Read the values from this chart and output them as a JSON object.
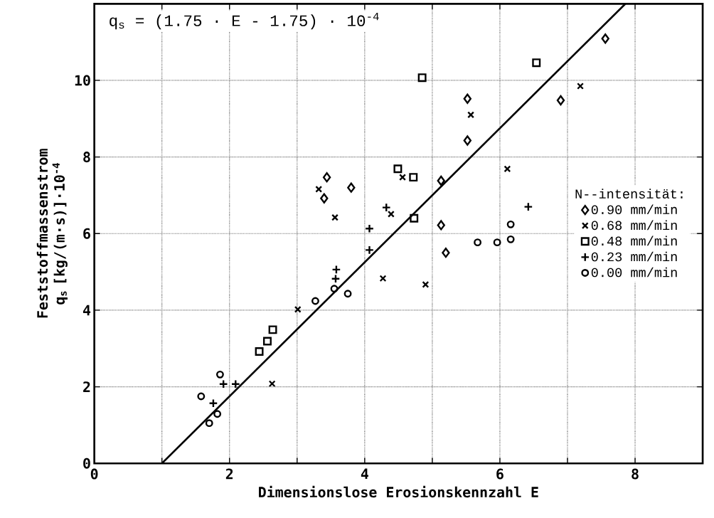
{
  "chart_data": {
    "type": "scatter",
    "xlabel": "Dimensionslose Erosionskennzahl E",
    "ylabel": "Feststoffmassenstrom q$_{s}$ [kg/(m·s)]·10$^{-4}$",
    "legend_title": "N--intensität:",
    "annotations": [
      "q$_{s}$ = (1.75 · E - 1.75) · 10$^{-4}$"
    ],
    "xlim": [
      0,
      9
    ],
    "ylim": [
      0,
      12
    ],
    "xticks": [
      0,
      {
        "value": 1,
        "label": null
      },
      2,
      {
        "value": 3,
        "label": null
      },
      4,
      {
        "value": 5,
        "label": null
      },
      6,
      {
        "value": 7,
        "label": null
      },
      8
    ],
    "yticks": [
      0,
      2,
      4,
      6,
      8,
      10
    ],
    "grid": true,
    "legend": "right",
    "series": [
      {
        "name": "0.90 mm/min",
        "color": "#000000",
        "marker": "diamond",
        "x": [
          3.44,
          3.4,
          3.8,
          7.56,
          5.52,
          5.52,
          6.9,
          5.13,
          5.13,
          5.2
        ],
        "values": [
          7.47,
          6.92,
          7.2,
          11.09,
          9.52,
          8.43,
          9.48,
          7.38,
          6.22,
          5.5
        ]
      },
      {
        "name": "0.68 mm/min",
        "color": "#000000",
        "marker": "x",
        "x": [
          3.32,
          3.56,
          5.57,
          7.19,
          6.11,
          4.56,
          4.39,
          4.9,
          3.01,
          2.63,
          4.27
        ],
        "values": [
          7.16,
          6.42,
          9.1,
          9.85,
          7.69,
          7.47,
          6.51,
          4.67,
          4.02,
          2.08,
          4.83
        ]
      },
      {
        "name": "0.48 mm/min",
        "color": "#000000",
        "marker": "square",
        "x": [
          4.85,
          6.54,
          4.49,
          4.72,
          4.73,
          2.44,
          2.56,
          2.64
        ],
        "values": [
          10.07,
          10.46,
          7.69,
          7.47,
          6.4,
          2.92,
          3.19,
          3.49
        ]
      },
      {
        "name": "0.23 mm/min",
        "color": "#000000",
        "marker": "cross",
        "x": [
          1.76,
          1.91,
          2.09,
          3.58,
          3.57,
          4.07,
          4.07,
          4.32,
          6.42
        ],
        "values": [
          1.57,
          2.07,
          2.07,
          5.06,
          4.82,
          5.57,
          6.13,
          6.68,
          6.7
        ]
      },
      {
        "name": "0.00 mm/min",
        "color": "#000000",
        "marker": "circle",
        "x": [
          1.58,
          1.7,
          1.82,
          1.86,
          3.27,
          3.55,
          3.75,
          5.67,
          5.96,
          6.16,
          6.16
        ],
        "values": [
          1.75,
          1.05,
          1.29,
          2.32,
          4.24,
          4.56,
          4.43,
          5.77,
          5.77,
          5.85,
          6.24
        ]
      },
      {
        "type": "line",
        "color": "#000000",
        "marker": "none",
        "x": [
          1,
          7.857
        ],
        "values": [
          0,
          12
        ]
      }
    ]
  }
}
